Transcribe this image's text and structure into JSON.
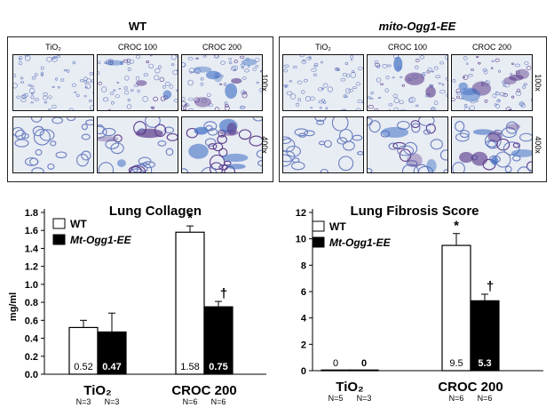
{
  "histology": {
    "panels": [
      {
        "title": "WT",
        "title_italic": false,
        "columns": [
          "TiO₂",
          "CROC 100",
          "CROC 200"
        ],
        "rows": [
          "100x",
          "400x"
        ]
      },
      {
        "title": "mito-Ogg1-EE",
        "title_italic": true,
        "columns": [
          "TiO₂",
          "CROC 100",
          "CROC 200"
        ],
        "rows": [
          "100x",
          "400x"
        ]
      }
    ]
  },
  "colors": {
    "wt": "#ffffff",
    "mt": "#000000",
    "stain_bg": "#e8ecf3",
    "stain_blue": "#6a7fc0",
    "stain_purple": "#5b3b8c",
    "collagen_blue": "#3f6fc4"
  },
  "chart_data": [
    {
      "type": "bar",
      "title": "Lung Collagen",
      "ylabel": "mg/ml",
      "xlabel": "",
      "ylim": [
        0,
        1.8
      ],
      "yticks": [
        "0.0",
        "0.2",
        "0.4",
        "0.6",
        "0.8",
        "1.0",
        "1.2",
        "1.4",
        "1.6",
        "1.8"
      ],
      "categories": [
        "TiO₂",
        "CROC 200"
      ],
      "series": [
        {
          "name": "WT",
          "values": [
            0.52,
            1.58
          ],
          "errors": [
            0.08,
            0.07
          ],
          "labels": [
            "0.52",
            "1.58"
          ],
          "n": [
            "N=3",
            "N=6"
          ],
          "markers": [
            "",
            "*"
          ]
        },
        {
          "name": "Mt-Ogg1-EE",
          "values": [
            0.47,
            0.75
          ],
          "errors": [
            0.21,
            0.06
          ],
          "labels": [
            "0.47",
            "0.75"
          ],
          "n": [
            "N=3",
            "N=6"
          ],
          "markers": [
            "",
            "†"
          ]
        }
      ],
      "legend": "top-left"
    },
    {
      "type": "bar",
      "title": "Lung Fibrosis Score",
      "ylabel": "",
      "xlabel": "",
      "ylim": [
        0,
        12
      ],
      "yticks": [
        "0",
        "2",
        "4",
        "6",
        "8",
        "10",
        "12"
      ],
      "categories": [
        "TiO₂",
        "CROC 200"
      ],
      "series": [
        {
          "name": "WT",
          "values": [
            0.05,
            9.5
          ],
          "errors": [
            0,
            0.9
          ],
          "labels": [
            "0",
            "9.5"
          ],
          "n": [
            "N=5",
            "N=6"
          ],
          "markers": [
            "",
            "*"
          ]
        },
        {
          "name": "Mt-Ogg1-EE",
          "values": [
            0.05,
            5.3
          ],
          "errors": [
            0,
            0.5
          ],
          "labels": [
            "0",
            "5.3"
          ],
          "n": [
            "N=3",
            "N=6"
          ],
          "markers": [
            "",
            "†"
          ]
        }
      ],
      "legend": "top-left"
    }
  ]
}
